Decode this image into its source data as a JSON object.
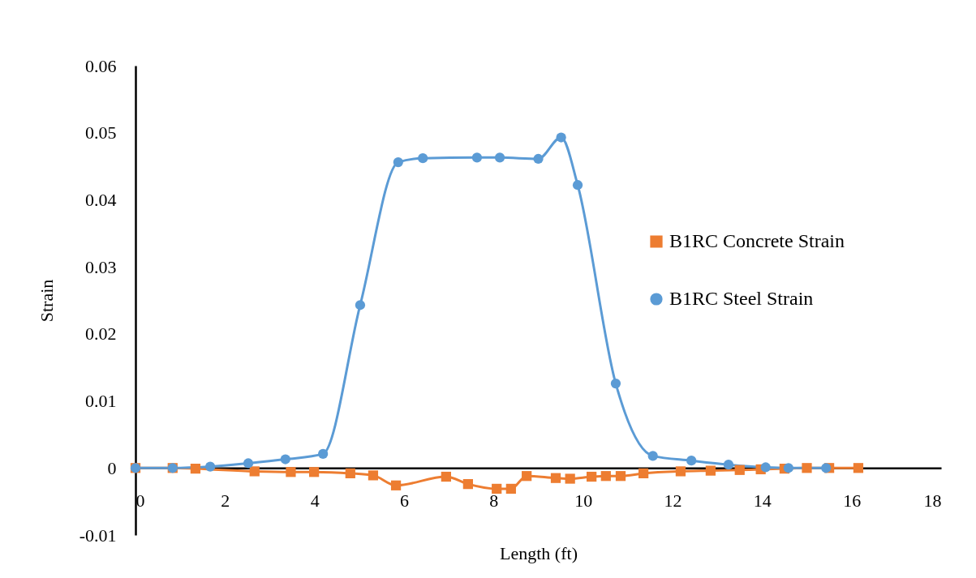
{
  "chart_data": {
    "type": "line",
    "xlabel": "Length (ft)",
    "ylabel": "Strain",
    "xlim": [
      0,
      18
    ],
    "ylim": [
      -0.01,
      0.06
    ],
    "xticks": [
      0,
      2,
      4,
      6,
      8,
      10,
      12,
      14,
      16,
      18
    ],
    "yticks": [
      -0.01,
      0,
      0.01,
      0.02,
      0.03,
      0.04,
      0.05,
      0.06
    ],
    "grid": false,
    "legend": "right",
    "series": [
      {
        "name": "B1RC Concrete Strain",
        "color": "#ed7d31",
        "marker": "square",
        "x": [
          0,
          0.83,
          1.34,
          2.66,
          3.47,
          3.99,
          4.8,
          5.31,
          5.82,
          6.94,
          7.43,
          8.07,
          8.39,
          8.74,
          9.39,
          9.71,
          10.19,
          10.51,
          10.84,
          11.35,
          12.18,
          12.85,
          13.5,
          13.97,
          14.5,
          15.0,
          15.5,
          16.15
        ],
        "values": [
          0,
          0,
          -0.0001,
          -0.0005,
          -0.0006,
          -0.0006,
          -0.0008,
          -0.0011,
          -0.0026,
          -0.0013,
          -0.0024,
          -0.0031,
          -0.0031,
          -0.0012,
          -0.0015,
          -0.0016,
          -0.0013,
          -0.0012,
          -0.0012,
          -0.0008,
          -0.0005,
          -0.0004,
          -0.0003,
          -0.0002,
          -0.0001,
          0,
          0,
          0
        ]
      },
      {
        "name": "B1RC Steel Strain",
        "color": "#5b9bd5",
        "marker": "circle",
        "x": [
          0,
          0.83,
          1.67,
          2.52,
          3.35,
          4.19,
          5.02,
          5.87,
          6.42,
          7.63,
          8.14,
          9.0,
          9.51,
          9.88,
          10.73,
          11.56,
          12.42,
          13.25,
          14.08,
          14.59,
          15.43
        ],
        "values": [
          0,
          0,
          0.0002,
          0.0007,
          0.0013,
          0.0021,
          0.0243,
          0.0456,
          0.0462,
          0.0463,
          0.0463,
          0.0461,
          0.0493,
          0.0422,
          0.0126,
          0.0018,
          0.0011,
          0.0005,
          0.0001,
          0,
          0
        ]
      }
    ]
  }
}
